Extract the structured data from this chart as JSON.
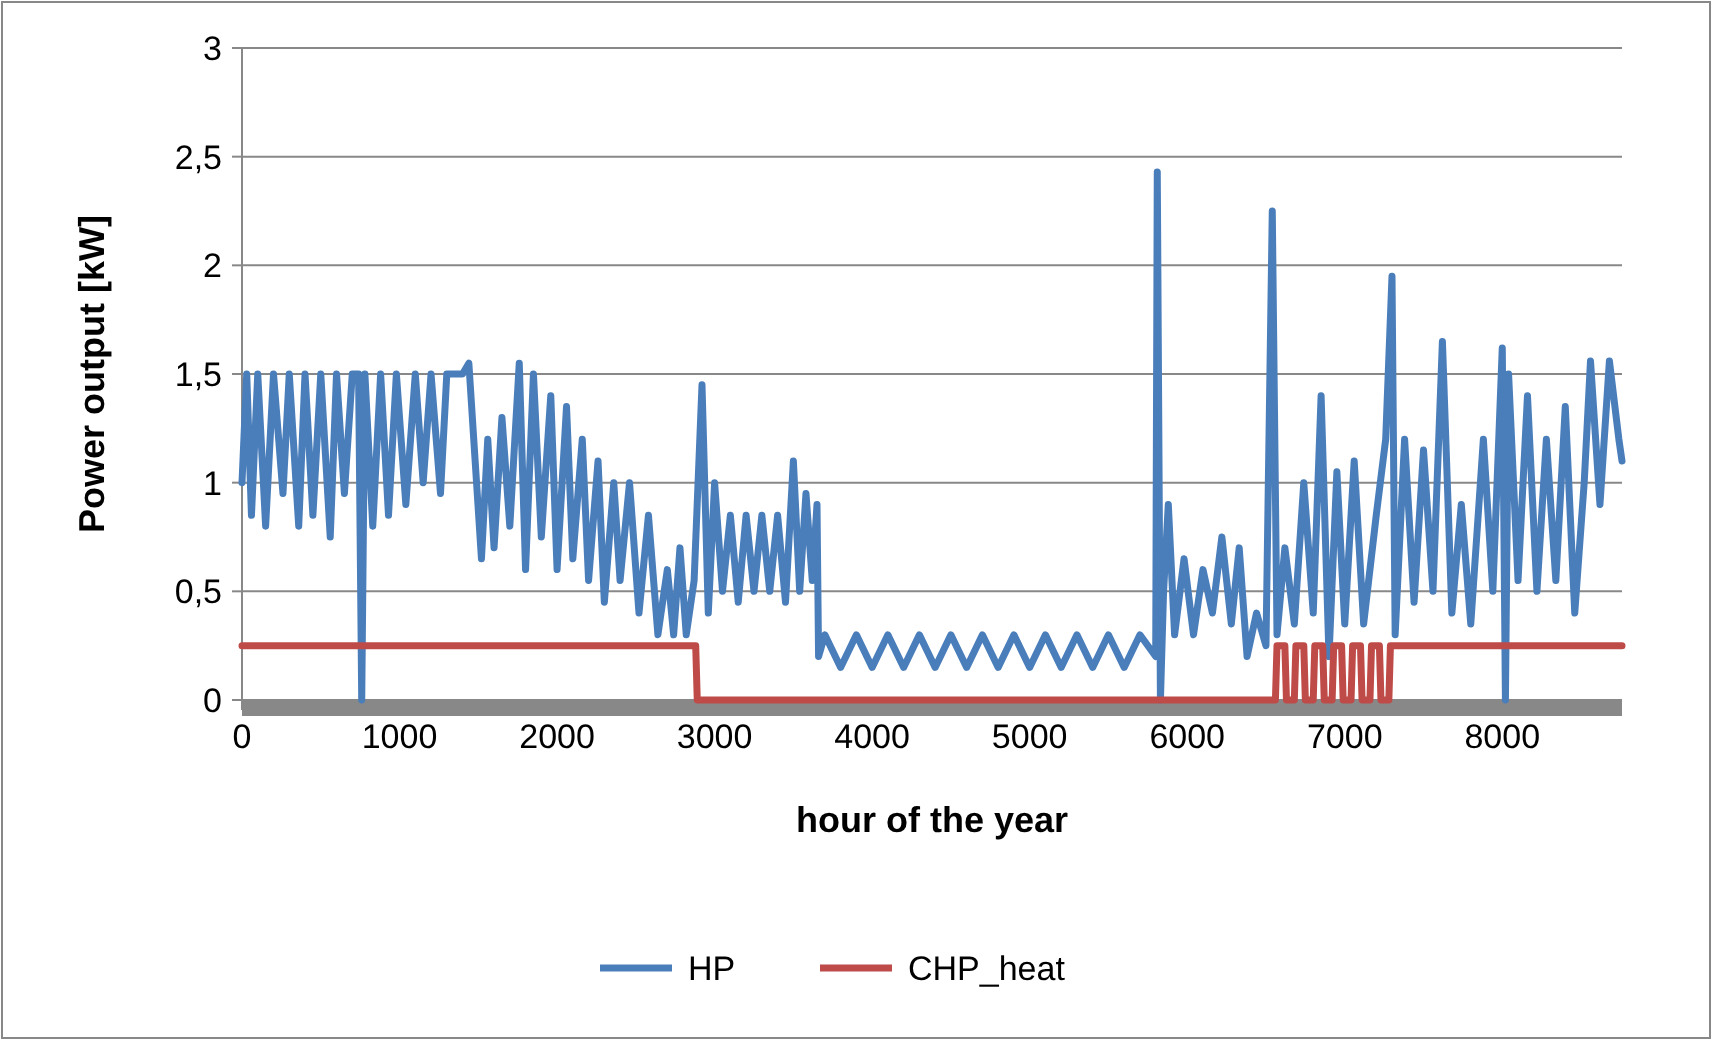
{
  "chart_data": {
    "type": "line",
    "xlabel": "hour of the year",
    "ylabel": "Power output [kW]",
    "xlim": [
      0,
      8760
    ],
    "ylim": [
      0,
      3
    ],
    "xticks": [
      0,
      1000,
      2000,
      3000,
      4000,
      5000,
      6000,
      7000,
      8000
    ],
    "yticks": [
      0,
      {
        "value": 0.5,
        "label": "0,5"
      },
      1,
      {
        "value": 1.5,
        "label": "1,5"
      },
      2,
      {
        "value": 2.5,
        "label": "2,5"
      },
      3
    ],
    "grid": "y",
    "legend": "bottom",
    "marker": "none",
    "line_style": "solid",
    "series": [
      {
        "name": "HP",
        "color": "#4a7ebb",
        "x": [
          0,
          30,
          60,
          100,
          150,
          200,
          260,
          300,
          360,
          400,
          450,
          500,
          560,
          600,
          650,
          700,
          740,
          760,
          780,
          830,
          880,
          930,
          980,
          1040,
          1100,
          1150,
          1200,
          1260,
          1300,
          1400,
          1440,
          1480,
          1520,
          1560,
          1600,
          1650,
          1700,
          1760,
          1800,
          1850,
          1900,
          1960,
          2000,
          2060,
          2100,
          2160,
          2200,
          2260,
          2300,
          2360,
          2400,
          2460,
          2520,
          2580,
          2640,
          2700,
          2740,
          2780,
          2820,
          2870,
          2920,
          2960,
          3000,
          3050,
          3100,
          3150,
          3200,
          3250,
          3300,
          3350,
          3400,
          3450,
          3500,
          3540,
          3580,
          3620,
          3650,
          3660,
          3700,
          3800,
          3900,
          4000,
          4100,
          4200,
          4300,
          4400,
          4500,
          4600,
          4700,
          4800,
          4900,
          5000,
          5100,
          5200,
          5300,
          5400,
          5500,
          5600,
          5700,
          5800,
          5810,
          5830,
          5850,
          5880,
          5920,
          5980,
          6040,
          6100,
          6160,
          6220,
          6280,
          6330,
          6380,
          6440,
          6500,
          6540,
          6570,
          6620,
          6680,
          6740,
          6800,
          6850,
          6900,
          6950,
          7000,
          7060,
          7120,
          7200,
          7260,
          7300,
          7320,
          7380,
          7440,
          7500,
          7560,
          7620,
          7680,
          7740,
          7800,
          7880,
          7940,
          8000,
          8020,
          8040,
          8100,
          8160,
          8220,
          8280,
          8340,
          8400,
          8460,
          8520,
          8560,
          8620,
          8680,
          8740,
          8760
        ],
        "values": [
          1.0,
          1.5,
          0.85,
          1.5,
          0.8,
          1.5,
          0.95,
          1.5,
          0.8,
          1.5,
          0.85,
          1.5,
          0.75,
          1.5,
          0.95,
          1.5,
          1.5,
          0,
          1.5,
          0.8,
          1.5,
          0.85,
          1.5,
          0.9,
          1.5,
          1.0,
          1.5,
          0.95,
          1.5,
          1.5,
          1.55,
          1.1,
          0.65,
          1.2,
          0.7,
          1.3,
          0.8,
          1.55,
          0.6,
          1.5,
          0.75,
          1.4,
          0.6,
          1.35,
          0.65,
          1.2,
          0.55,
          1.1,
          0.45,
          1.0,
          0.55,
          1.0,
          0.4,
          0.85,
          0.3,
          0.6,
          0.3,
          0.7,
          0.3,
          0.55,
          1.45,
          0.4,
          1.0,
          0.5,
          0.85,
          0.45,
          0.85,
          0.5,
          0.85,
          0.5,
          0.85,
          0.45,
          1.1,
          0.5,
          0.95,
          0.55,
          0.9,
          0.2,
          0.3,
          0.15,
          0.3,
          0.15,
          0.3,
          0.15,
          0.3,
          0.15,
          0.3,
          0.15,
          0.3,
          0.15,
          0.3,
          0.15,
          0.3,
          0.15,
          0.3,
          0.15,
          0.3,
          0.15,
          0.3,
          0.2,
          2.43,
          0,
          0.5,
          0.9,
          0.3,
          0.65,
          0.3,
          0.6,
          0.4,
          0.75,
          0.35,
          0.7,
          0.2,
          0.4,
          0.25,
          2.25,
          0.3,
          0.7,
          0.35,
          1.0,
          0.4,
          1.4,
          0.2,
          1.05,
          0.35,
          1.1,
          0.35,
          0.85,
          1.2,
          1.95,
          0.3,
          1.2,
          0.45,
          1.15,
          0.5,
          1.65,
          0.4,
          0.9,
          0.35,
          1.2,
          0.5,
          1.62,
          0,
          1.5,
          0.55,
          1.4,
          0.5,
          1.2,
          0.55,
          1.35,
          0.4,
          1.0,
          1.56,
          0.9,
          1.56,
          1.2,
          1.1
        ]
      },
      {
        "name": "CHP_heat",
        "color": "#be4b48",
        "x": [
          0,
          2880,
          2890,
          6560,
          6570,
          6620,
          6630,
          6680,
          6690,
          6740,
          6750,
          6800,
          6810,
          6860,
          6870,
          6920,
          6930,
          6980,
          6990,
          7040,
          7050,
          7100,
          7110,
          7160,
          7170,
          7220,
          7230,
          7280,
          7290,
          7320,
          8760
        ],
        "values": [
          0.25,
          0.25,
          0,
          0,
          0.25,
          0.25,
          0,
          0,
          0.25,
          0.25,
          0,
          0,
          0.25,
          0.25,
          0,
          0,
          0.25,
          0.25,
          0,
          0,
          0.25,
          0.25,
          0,
          0,
          0.25,
          0.25,
          0,
          0,
          0.25,
          0.25,
          0.25
        ]
      }
    ]
  }
}
